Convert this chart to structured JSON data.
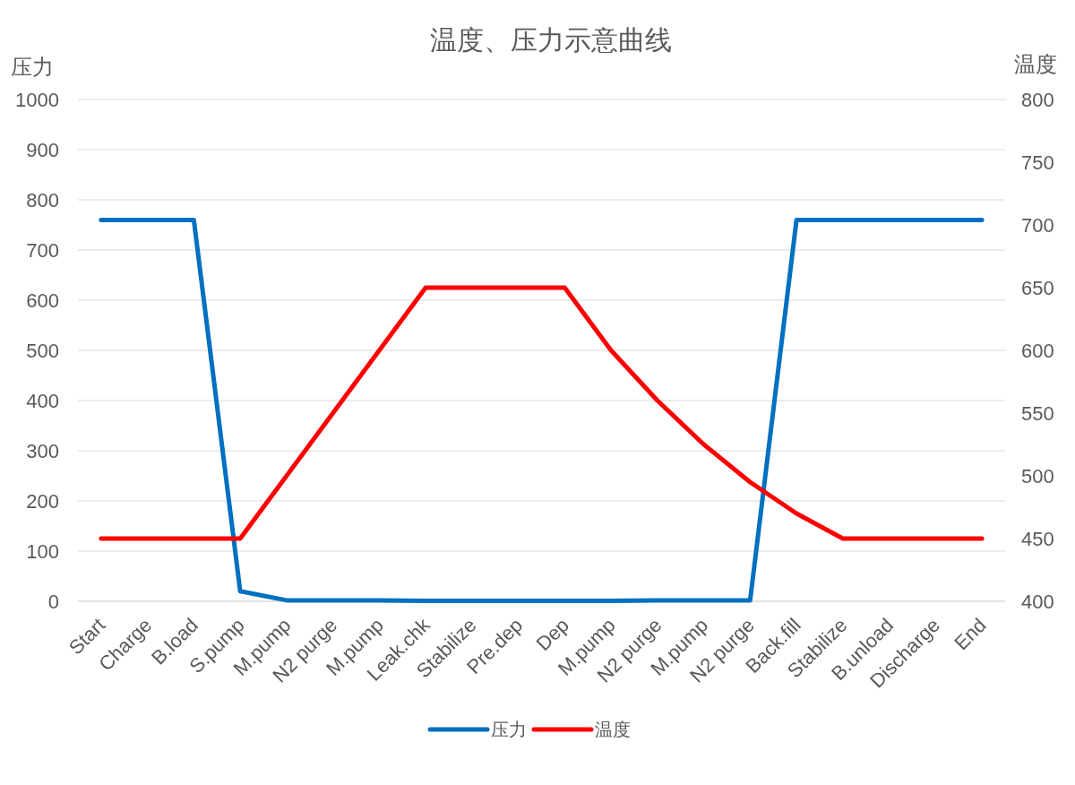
{
  "chart_data": {
    "type": "line",
    "title": "温度、压力示意曲线",
    "ylabel": "压力",
    "y2label": "温度",
    "categories": [
      "Start",
      "Charge",
      "B.load",
      "S.pump",
      "M.pump",
      "N2 purge",
      "M.pump",
      "Leak.chk",
      "Stabilize",
      "Pre.dep",
      "Dep",
      "M.pump",
      "N2 purge",
      "M.pump",
      "N2 purge",
      "Back.fill",
      "Stabilize",
      "B.unload",
      "Discharge",
      "End"
    ],
    "series": [
      {
        "name": "压力",
        "color": "#0070c0",
        "values": [
          760,
          760,
          760,
          20,
          2,
          2,
          2,
          1,
          1,
          1,
          1,
          1,
          2,
          2,
          2,
          760,
          760,
          760,
          760,
          760
        ]
      },
      {
        "name": "温度",
        "color": "#ff0000",
        "axis": "y2",
        "values": [
          450,
          450,
          450,
          450,
          500,
          550,
          600,
          650,
          650,
          650,
          650,
          600,
          560,
          525,
          495,
          470,
          450,
          450,
          450,
          450
        ]
      }
    ],
    "ylim": [
      0,
      1000
    ],
    "yticks": [
      0,
      100,
      200,
      300,
      400,
      500,
      600,
      700,
      800,
      900,
      1000
    ],
    "y2lim": [
      400,
      800
    ],
    "y2ticks": [
      400,
      450,
      500,
      550,
      600,
      650,
      700,
      750,
      800
    ],
    "grid": "y",
    "legend": "bottom",
    "marker": "none",
    "line_style": "solid"
  }
}
